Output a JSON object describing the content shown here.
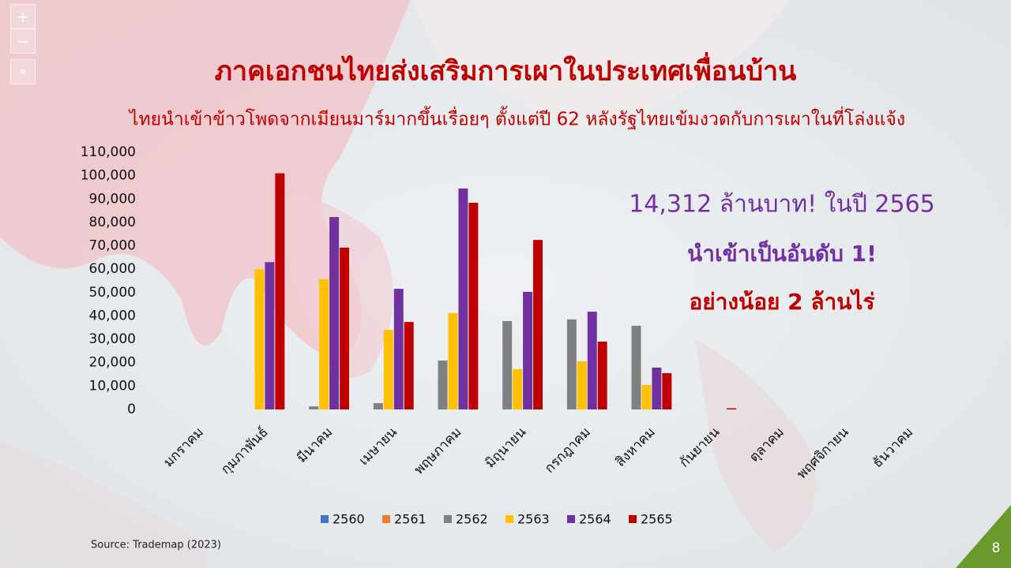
{
  "chart_data": {
    "type": "bar",
    "title": "ภาคเอกชนไทยส่งเสริมการเผาในประเทศเพื่อนบ้าน",
    "subtitle": "ไทยนำเข้าข้าวโพดจากเมียนมาร์มากขึ้นเรื่อยๆ ตั้งแต่ปี 62 หลังรัฐไทยเข้มงวดกับการเผาในที่โล่งแจ้ง",
    "annotations": [
      "14,312 ล้านบาท! ในปี 2565",
      "นำเข้าเป็นอันดับ 1!",
      "อย่างน้อย 2 ล้านไร่"
    ],
    "source": "Source: Trademap (2023)",
    "page_number": "8",
    "categories": [
      "มกราคม",
      "กุมภาพันธ์",
      "มีนาคม",
      "เมษายน",
      "พฤษภาคม",
      "มิถุนายน",
      "กรกฎาคม",
      "สิงหาคม",
      "กันยายน",
      "ตุลาคม",
      "พฤศจิกายน",
      "ธันวาคม"
    ],
    "series": [
      {
        "name": "2560",
        "color": "#4472c4",
        "values": [
          0,
          0,
          0,
          0,
          0,
          0,
          0,
          0,
          0,
          0,
          0,
          0
        ]
      },
      {
        "name": "2561",
        "color": "#ed7d31",
        "values": [
          0,
          0,
          0,
          0,
          0,
          0,
          0,
          0,
          0,
          0,
          0,
          0
        ]
      },
      {
        "name": "2562",
        "color": "#808080",
        "values": [
          0,
          0,
          1300,
          2700,
          20900,
          37800,
          38500,
          35800,
          0,
          0,
          0,
          0
        ]
      },
      {
        "name": "2563",
        "color": "#ffc000",
        "values": [
          0,
          60000,
          55700,
          34000,
          41200,
          17200,
          20600,
          10500,
          0,
          0,
          0,
          0
        ]
      },
      {
        "name": "2564",
        "color": "#7030a0",
        "values": [
          0,
          63000,
          82300,
          51600,
          94500,
          50300,
          41800,
          17900,
          0,
          0,
          0,
          0
        ]
      },
      {
        "name": "2565",
        "color": "#c00000",
        "values": [
          0,
          101000,
          69200,
          37400,
          88400,
          72500,
          29000,
          15500,
          500,
          0,
          0,
          0
        ]
      }
    ],
    "ylim": [
      0,
      110000
    ],
    "yticks": [
      0,
      {
        "value": 10000,
        "label": "10,000"
      },
      {
        "value": 20000,
        "label": "20,000"
      },
      {
        "value": 30000,
        "label": "30,000"
      },
      {
        "value": 40000,
        "label": "40,000"
      },
      {
        "value": 50000,
        "label": "50,000"
      },
      {
        "value": 60000,
        "label": "60,000"
      },
      {
        "value": 70000,
        "label": "70,000"
      },
      {
        "value": 80000,
        "label": "80,000"
      },
      {
        "value": 90000,
        "label": "90,000"
      },
      {
        "value": 100000,
        "label": "100,000"
      },
      {
        "value": 110000,
        "label": "110,000"
      }
    ],
    "grid": false
  }
}
